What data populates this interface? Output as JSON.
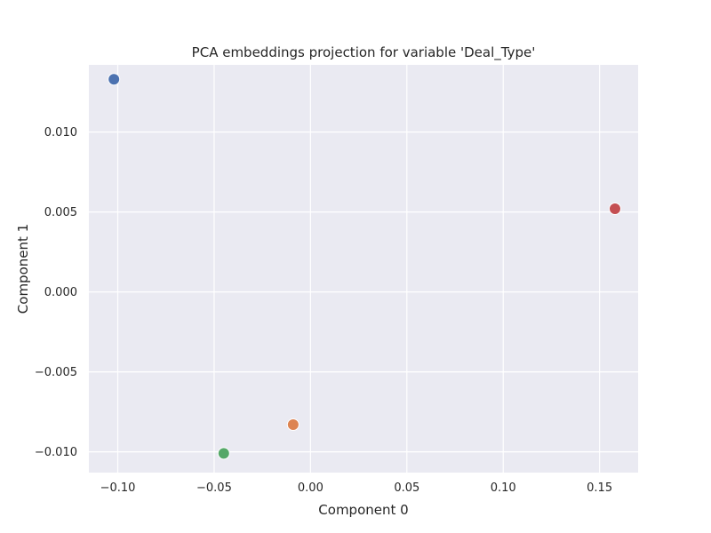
{
  "chart_data": {
    "type": "scatter",
    "title": "PCA embeddings projection for variable 'Deal_Type'",
    "xlabel": "Component 0",
    "ylabel": "Component 1",
    "xlim": [
      -0.115,
      0.17
    ],
    "ylim": [
      -0.0113,
      0.0142
    ],
    "xticks": [
      -0.1,
      -0.05,
      0.0,
      0.05,
      0.1,
      0.15
    ],
    "xtick_labels": [
      "−0.10",
      "−0.05",
      "0.00",
      "0.05",
      "0.10",
      "0.15"
    ],
    "yticks": [
      -0.01,
      -0.005,
      0.0,
      0.005,
      0.01
    ],
    "ytick_labels": [
      "−0.010",
      "−0.005",
      "0.000",
      "0.005",
      "0.010"
    ],
    "grid": true,
    "background": "#eaeaf2",
    "points": [
      {
        "x": -0.102,
        "y": 0.0133,
        "color": "#4c72b0"
      },
      {
        "x": -0.009,
        "y": -0.0083,
        "color": "#dd8452"
      },
      {
        "x": -0.045,
        "y": -0.0101,
        "color": "#55a868"
      },
      {
        "x": 0.158,
        "y": 0.0052,
        "color": "#c44e52"
      }
    ]
  }
}
